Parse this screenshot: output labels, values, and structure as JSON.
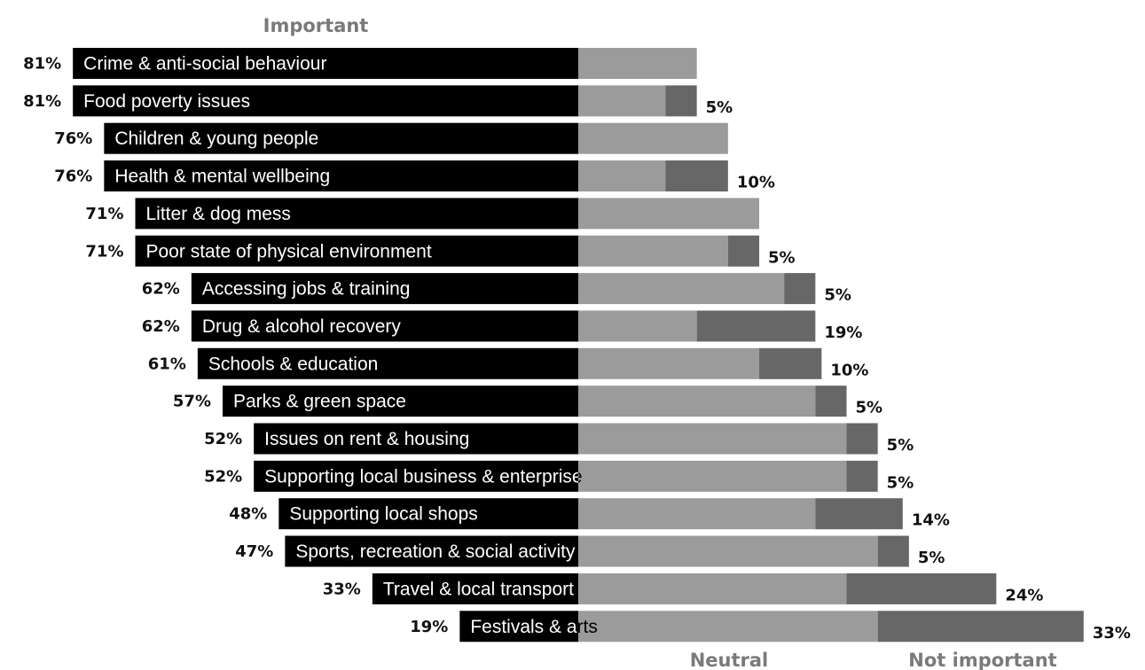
{
  "chart_data": {
    "type": "bar",
    "headers": {
      "important": "Important",
      "neutral": "Neutral",
      "not_important": "Not important"
    },
    "series": [
      {
        "name": "Important",
        "color": "#000000"
      },
      {
        "name": "Neutral",
        "color": "#9b9b9b"
      },
      {
        "name": "Not important",
        "color": "#676767"
      }
    ],
    "rows": [
      {
        "category": "Crime & anti-social behaviour",
        "important": 81,
        "important_label": "81%",
        "neutral": 19,
        "not_important": 0,
        "not_important_label": ""
      },
      {
        "category": "Food poverty issues",
        "important": 81,
        "important_label": "81%",
        "neutral": 14,
        "not_important": 5,
        "not_important_label": "5%"
      },
      {
        "category": "Children & young people",
        "important": 76,
        "important_label": "76%",
        "neutral": 24,
        "not_important": 0,
        "not_important_label": ""
      },
      {
        "category": "Health & mental wellbeing",
        "important": 76,
        "important_label": "76%",
        "neutral": 14,
        "not_important": 10,
        "not_important_label": "10%"
      },
      {
        "category": "Litter & dog mess",
        "important": 71,
        "important_label": "71%",
        "neutral": 29,
        "not_important": 0,
        "not_important_label": ""
      },
      {
        "category": "Poor state of physical environment",
        "important": 71,
        "important_label": "71%",
        "neutral": 24,
        "not_important": 5,
        "not_important_label": "5%"
      },
      {
        "category": "Accessing jobs & training",
        "important": 62,
        "important_label": "62%",
        "neutral": 33,
        "not_important": 5,
        "not_important_label": "5%"
      },
      {
        "category": "Drug & alcohol recovery",
        "important": 62,
        "important_label": "62%",
        "neutral": 19,
        "not_important": 19,
        "not_important_label": "19%"
      },
      {
        "category": "Schools & education",
        "important": 61,
        "important_label": "61%",
        "neutral": 29,
        "not_important": 10,
        "not_important_label": "10%"
      },
      {
        "category": "Parks & green space",
        "important": 57,
        "important_label": "57%",
        "neutral": 38,
        "not_important": 5,
        "not_important_label": "5%"
      },
      {
        "category": "Issues on rent & housing",
        "important": 52,
        "important_label": "52%",
        "neutral": 43,
        "not_important": 5,
        "not_important_label": "5%"
      },
      {
        "category": "Supporting local business & enterprise",
        "important": 52,
        "important_label": "52%",
        "neutral": 43,
        "not_important": 5,
        "not_important_label": "5%"
      },
      {
        "category": "Supporting local shops",
        "important": 48,
        "important_label": "48%",
        "neutral": 38,
        "not_important": 14,
        "not_important_label": "14%"
      },
      {
        "category": "Sports, recreation & social activity",
        "important": 47,
        "important_label": "47%",
        "neutral": 48,
        "not_important": 5,
        "not_important_label": "5%"
      },
      {
        "category": "Travel & local transport",
        "important": 33,
        "important_label": "33%",
        "neutral": 43,
        "not_important": 24,
        "not_important_label": "24%"
      },
      {
        "category": "Festivals & arts",
        "important": 19,
        "important_label": "19%",
        "neutral": 48,
        "not_important": 33,
        "not_important_label": "33%"
      }
    ]
  }
}
